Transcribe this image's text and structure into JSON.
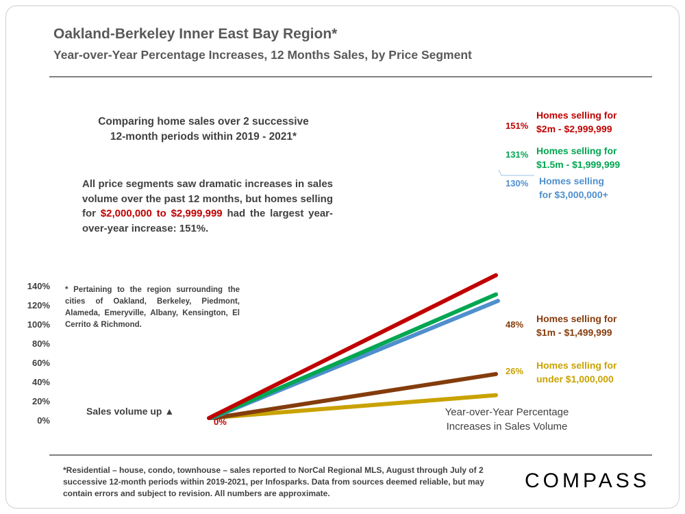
{
  "header": {
    "title": "Oakland-Berkeley Inner East Bay Region*",
    "subtitle": "Year-over-Year Percentage Increases, 12 Months Sales, by Price Segment"
  },
  "annotations": {
    "compare_line1": "Comparing home sales over 2 successive",
    "compare_line2": "12-month periods within 2019 - 2021*",
    "summary_before": "All price segments saw dramatic increases in sales volume over the past 12 months, but homes selling for ",
    "summary_highlight": "$2,000,000 to $2,999,999",
    "summary_after": " had the largest year-over-year increase:  151%.",
    "footnote": "* Pertaining to the region surrounding the cities of Oakland, Berkeley, Piedmont, Alameda, Emeryville, Albany, Kensington, El Cerrito & Richmond.",
    "left_axis_caption": "Sales volume up ▲",
    "right_caption_line1": "Year-over-Year Percentage",
    "right_caption_line2": "Increases in Sales Volume",
    "start_label": "0%"
  },
  "footer": {
    "disclaimer": "*Residential – house, condo, townhouse – sales reported to NorCal Regional MLS, August through July of 2 successive 12-month periods within 2019-2021, per Infosparks. Data from sources deemed reliable, but may contain errors and subject to revision. All numbers  are approximate.",
    "brand": "COMPASS"
  },
  "colors": {
    "red": "#c00000",
    "green": "#00a651",
    "blue": "#4f8fcd",
    "brown": "#843c0c",
    "gold": "#c9a200"
  },
  "chart_data": {
    "type": "line",
    "x": [
      "start",
      "end"
    ],
    "ylim": [
      0,
      140
    ],
    "yticks": [
      0,
      20,
      40,
      60,
      80,
      100,
      120,
      140
    ],
    "ytick_labels": [
      "0%",
      "20%",
      "40%",
      "60%",
      "80%",
      "100%",
      "120%",
      "140%"
    ],
    "grid": false,
    "series": [
      {
        "name_line1": "Homes selling for",
        "name_line2": "$2m - $2,999,999",
        "values": [
          0,
          151
        ],
        "end_label": "151%",
        "color": "#c00000"
      },
      {
        "name_line1": "Homes selling for",
        "name_line2": "$1.5m - $1,999,999",
        "values": [
          0,
          131
        ],
        "end_label": "131%",
        "color": "#00a651"
      },
      {
        "name_line1": "Homes selling",
        "name_line2": "for $3,000,000+",
        "values": [
          0,
          130
        ],
        "end_label": "130%",
        "color": "#4f8fcd"
      },
      {
        "name_line1": "Homes selling for",
        "name_line2": "$1m - $1,499,999",
        "values": [
          0,
          48
        ],
        "end_label": "48%",
        "color": "#843c0c"
      },
      {
        "name_line1": "Homes selling for",
        "name_line2": "under $1,000,000",
        "values": [
          0,
          26
        ],
        "end_label": "26%",
        "color": "#c9a200"
      }
    ]
  }
}
